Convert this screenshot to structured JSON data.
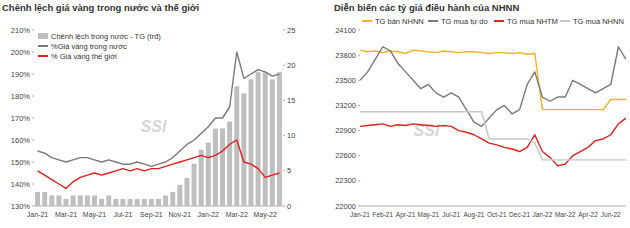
{
  "chart_data": [
    {
      "type": "combo",
      "title": "Chênh lệch giá vàng trong nước và thế giới",
      "annotations": [
        "SSI"
      ],
      "categories": [
        "Jan-21",
        null,
        null,
        null,
        "Mar-21",
        null,
        null,
        null,
        "May-21",
        null,
        null,
        null,
        "Jul-21",
        null,
        null,
        null,
        "Sep-21",
        null,
        null,
        null,
        "Nov-21",
        null,
        null,
        null,
        "Jan-22",
        null,
        null,
        null,
        "Mar-22",
        null,
        null,
        null,
        "May-22",
        null,
        null
      ],
      "series": [
        {
          "name": "Chênh lệch trong nước - TG (trđ)",
          "type": "bar",
          "axis": "y2",
          "color": "#bfbfbf",
          "values": [
            2,
            2,
            1.5,
            1.5,
            1,
            1.5,
            1.5,
            1.5,
            1.5,
            1,
            1.5,
            1,
            1,
            1,
            1,
            1,
            1,
            1,
            1.5,
            2,
            3,
            4,
            6,
            8,
            9,
            11,
            11,
            12,
            17,
            16,
            18,
            19,
            19,
            18,
            19
          ]
        },
        {
          "name": "%Giá vàng trong nước",
          "type": "line",
          "color": "#7a7a7a",
          "values": [
            155,
            154,
            152,
            151,
            150,
            151,
            152,
            152,
            151,
            150,
            151,
            150,
            149,
            149,
            150,
            149,
            148,
            149,
            150,
            152,
            155,
            158,
            160,
            163,
            166,
            170,
            170,
            175,
            200,
            188,
            190,
            192,
            191,
            189,
            190
          ]
        },
        {
          "name": "% Giá vàng thế giới",
          "type": "line",
          "color": "#e0201b",
          "values": [
            146,
            144,
            142,
            140,
            138,
            141,
            143,
            144,
            145,
            144,
            145,
            146,
            147,
            146,
            147,
            146,
            147,
            147,
            148,
            149,
            150,
            151,
            152,
            153,
            152,
            153,
            155,
            158,
            160,
            150,
            149,
            147,
            143,
            144,
            145
          ]
        }
      ],
      "ylim": [
        130,
        210
      ],
      "yticks": [
        {
          "value": 130,
          "label": "130%"
        },
        {
          "value": 140,
          "label": "140%"
        },
        {
          "value": 150,
          "label": "150%"
        },
        {
          "value": 160,
          "label": "160%"
        },
        {
          "value": 170,
          "label": "170%"
        },
        {
          "value": 180,
          "label": "180%"
        },
        {
          "value": 190,
          "label": "190%"
        },
        {
          "value": 200,
          "label": "200%"
        },
        {
          "value": 210,
          "label": "210%"
        }
      ],
      "y2lim": [
        0,
        25
      ],
      "y2ticks": [
        0,
        5,
        10,
        15,
        20,
        25
      ],
      "grid": false,
      "legend": "top-left"
    },
    {
      "type": "line",
      "title": "Diễn biến các tỷ giá điều hành của NHNN",
      "annotations": [
        "SSI"
      ],
      "categories": [
        "Jan-21",
        null,
        null,
        "Feb-21",
        null,
        null,
        "Apr-21",
        null,
        null,
        "May-21",
        null,
        null,
        "Jul-21",
        null,
        null,
        "Aug-21",
        null,
        null,
        "Oct-21",
        null,
        null,
        "Dec-21",
        null,
        null,
        "Jan-22",
        null,
        null,
        "Mar-22",
        null,
        null,
        "Apr-22",
        null,
        null,
        "Jun-22",
        null,
        null
      ],
      "series": [
        {
          "name": "TG bán NHNN",
          "color": "#f5b324",
          "values": [
            23860,
            23840,
            23850,
            23830,
            23850,
            23840,
            23820,
            23860,
            23850,
            23840,
            23830,
            23850,
            23840,
            23830,
            23840,
            23840,
            23830,
            23820,
            23830,
            23830,
            23820,
            23830,
            23810,
            23820,
            23150,
            23150,
            23150,
            23150,
            23150,
            23150,
            23150,
            23150,
            23150,
            23270,
            23270,
            23270
          ]
        },
        {
          "name": "TG mua tự do",
          "color": "#7a7a7a",
          "values": [
            23500,
            23600,
            23750,
            23900,
            23850,
            23700,
            23600,
            23500,
            23400,
            23450,
            23350,
            23300,
            23350,
            23300,
            23150,
            23000,
            22950,
            23050,
            23150,
            23200,
            23100,
            23150,
            23450,
            23600,
            23300,
            23250,
            23300,
            23300,
            23500,
            23450,
            23400,
            23350,
            23400,
            23450,
            23900,
            23750
          ]
        },
        {
          "name": "TG mua NHTM",
          "color": "#e0201b",
          "values": [
            22950,
            22960,
            22970,
            22980,
            22950,
            22970,
            22960,
            22980,
            22970,
            22960,
            22950,
            22960,
            22950,
            22900,
            22880,
            22850,
            22800,
            22750,
            22730,
            22700,
            22680,
            22650,
            22700,
            22850,
            22650,
            22580,
            22480,
            22500,
            22600,
            22650,
            22700,
            22780,
            22800,
            22850,
            22980,
            23050
          ]
        },
        {
          "name": "TG mua NHNN",
          "color": "#c8c8c8",
          "values": [
            23125,
            23125,
            23125,
            23125,
            23125,
            23125,
            23125,
            23125,
            23125,
            23125,
            23125,
            23125,
            23125,
            23125,
            23125,
            23125,
            23125,
            22800,
            22800,
            22800,
            22800,
            22800,
            22800,
            22750,
            22550,
            22550,
            22550,
            22550,
            22550,
            22550,
            22550,
            22550,
            22550,
            22550,
            22550,
            22550
          ]
        }
      ],
      "ylim": [
        22000,
        24100
      ],
      "yticks": [
        22000,
        22300,
        22600,
        22900,
        23200,
        23500,
        23800,
        24100
      ],
      "grid": false,
      "legend": "top"
    }
  ]
}
